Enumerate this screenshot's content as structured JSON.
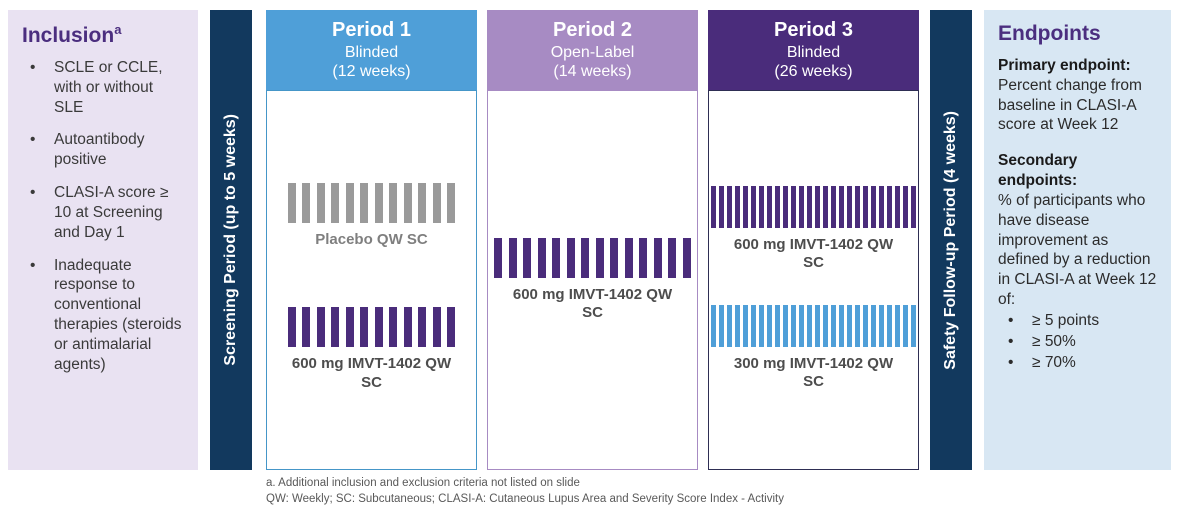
{
  "colors": {
    "navy": "#12395E",
    "accent_purple": "#4B2E7F",
    "inclusion_bg": "#E9E2F2",
    "endpoints_bg": "#D8E7F3",
    "gray_bar": "#9A9A9A",
    "purple_bar": "#4A2C7B",
    "blue_bar": "#4F9FD8"
  },
  "inclusion": {
    "title": "Inclusion",
    "title_sup": "a",
    "bullets": [
      "SCLE or CCLE, with or without SLE",
      "Autoantibody positive",
      "CLASI-A score ≥ 10 at Screening and Day 1",
      "Inadequate response to conventional therapies (steroids or antimalarial agents)"
    ]
  },
  "screening_bar": {
    "label": "Screening Period (up to 5 weeks)"
  },
  "safety_bar": {
    "label": "Safety Follow-up Period (4 weeks)"
  },
  "periods": [
    {
      "name": "Period 1",
      "subtitle": "Blinded",
      "duration": "(12 weeks)",
      "header_color": "#4F9FD8",
      "border_color": "#4596C8",
      "layout": "layout-p1",
      "arms": [
        {
          "label": "Placebo QW SC",
          "bar_color": "#9A9A9A",
          "label_color": "#7F7F7F",
          "bar_count": 12,
          "bar_style": "wide"
        },
        {
          "label": "600 mg IMVT-1402 QW SC",
          "bar_color": "#4A2C7B",
          "label_color": "#4D4D4D",
          "bar_count": 12,
          "bar_style": "wide"
        }
      ]
    },
    {
      "name": "Period 2",
      "subtitle": "Open-Label",
      "duration": "(14 weeks)",
      "header_color": "#A78BC3",
      "border_color": "#A78BC3",
      "layout": "layout-p2",
      "arms": [
        {
          "label": "600 mg IMVT-1402 QW SC",
          "bar_color": "#4A2C7B",
          "label_color": "#4D4D4D",
          "bar_count": 14,
          "bar_style": "wide"
        }
      ]
    },
    {
      "name": "Period 3",
      "subtitle": "Blinded",
      "duration": "(26 weeks)",
      "header_color": "#4A2C7B",
      "border_color": "#2E2E54",
      "layout": "layout-p3",
      "arms": [
        {
          "label": "600 mg IMVT-1402 QW SC",
          "bar_color": "#4A2C7B",
          "label_color": "#4D4D4D",
          "bar_count": 26,
          "bar_style": "thin"
        },
        {
          "label": "300 mg IMVT-1402 QW SC",
          "bar_color": "#4F9FD8",
          "label_color": "#4D4D4D",
          "bar_count": 26,
          "bar_style": "thin"
        }
      ]
    }
  ],
  "endpoints": {
    "title": "Endpoints",
    "primary_label": "Primary endpoint:",
    "primary_text": "Percent change from baseline in CLASI-A score at Week 12",
    "secondary_label": "Secondary endpoints:",
    "secondary_text": "% of participants who have disease improvement as defined by a reduction in CLASI-A at Week 12 of:",
    "secondary_bullets": [
      "≥ 5 points",
      "≥ 50%",
      "≥ 70%"
    ]
  },
  "footnotes": [
    "a. Additional inclusion and exclusion criteria not listed on slide",
    "QW: Weekly; SC: Subcutaneous; CLASI-A: Cutaneous Lupus Area and Severity Score Index - Activity"
  ]
}
